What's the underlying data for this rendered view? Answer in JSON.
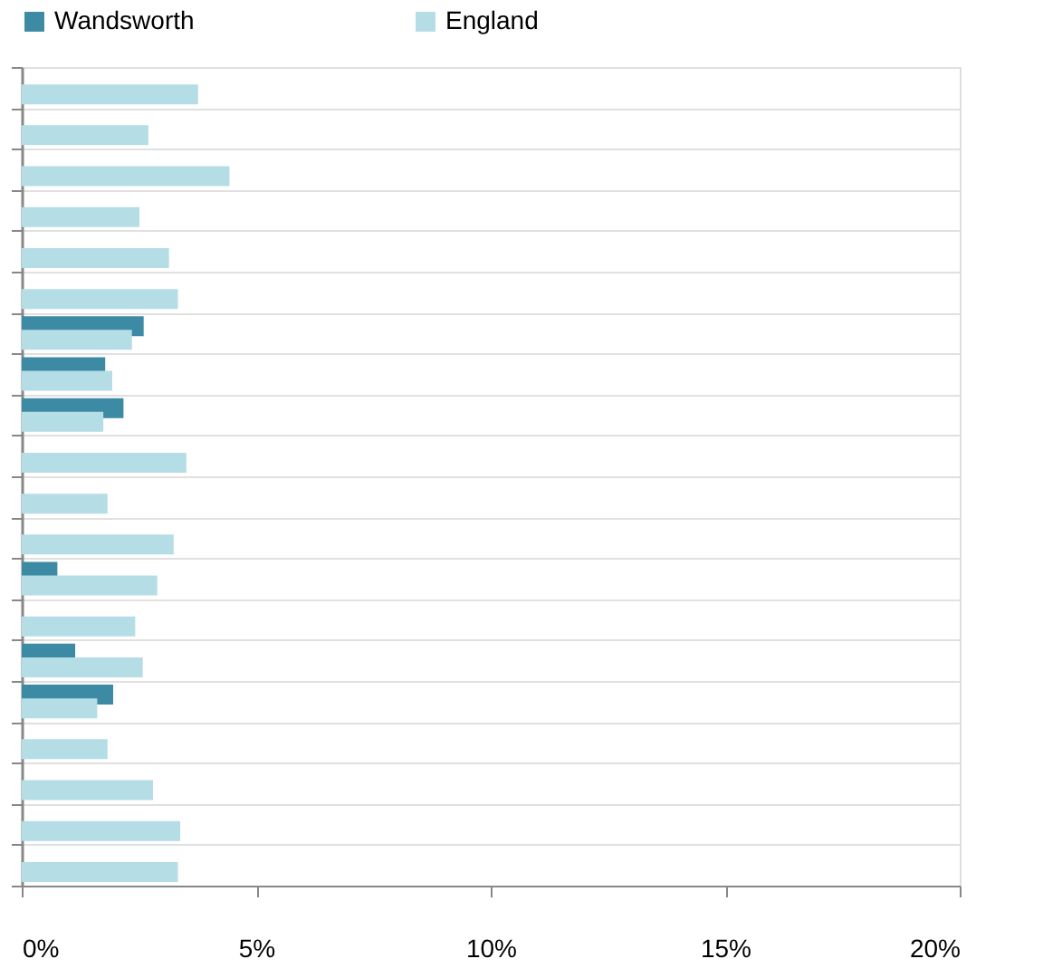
{
  "chart_data": {
    "type": "bar",
    "orientation": "horizontal",
    "categories": [
      null,
      null,
      null,
      null,
      null,
      null,
      null,
      null,
      null,
      null,
      null,
      null,
      null,
      null,
      null,
      null,
      null,
      null,
      null,
      null
    ],
    "series": [
      {
        "name": "Wandsworth",
        "color": "#3c8aa3",
        "values": [
          null,
          null,
          null,
          null,
          null,
          null,
          2.6,
          1.78,
          2.17,
          null,
          null,
          null,
          0.76,
          null,
          1.14,
          1.95,
          null,
          null,
          null,
          null
        ]
      },
      {
        "name": "England",
        "color": "#b5dde6",
        "values": [
          3.76,
          2.7,
          4.43,
          2.51,
          3.14,
          3.33,
          2.35,
          1.93,
          1.74,
          3.51,
          1.83,
          3.24,
          2.89,
          2.42,
          2.58,
          1.61,
          1.83,
          2.8,
          3.38,
          3.33
        ]
      }
    ],
    "xlim": [
      0,
      20
    ],
    "xticks": [
      {
        "value": 0,
        "label": "0%"
      },
      {
        "value": 5,
        "label": "5%"
      },
      {
        "value": 10,
        "label": "10%"
      },
      {
        "value": 15,
        "label": "15%"
      },
      {
        "value": 20,
        "label": "20%"
      }
    ],
    "grid": "y",
    "legend": "top",
    "tick_labels": "x"
  }
}
